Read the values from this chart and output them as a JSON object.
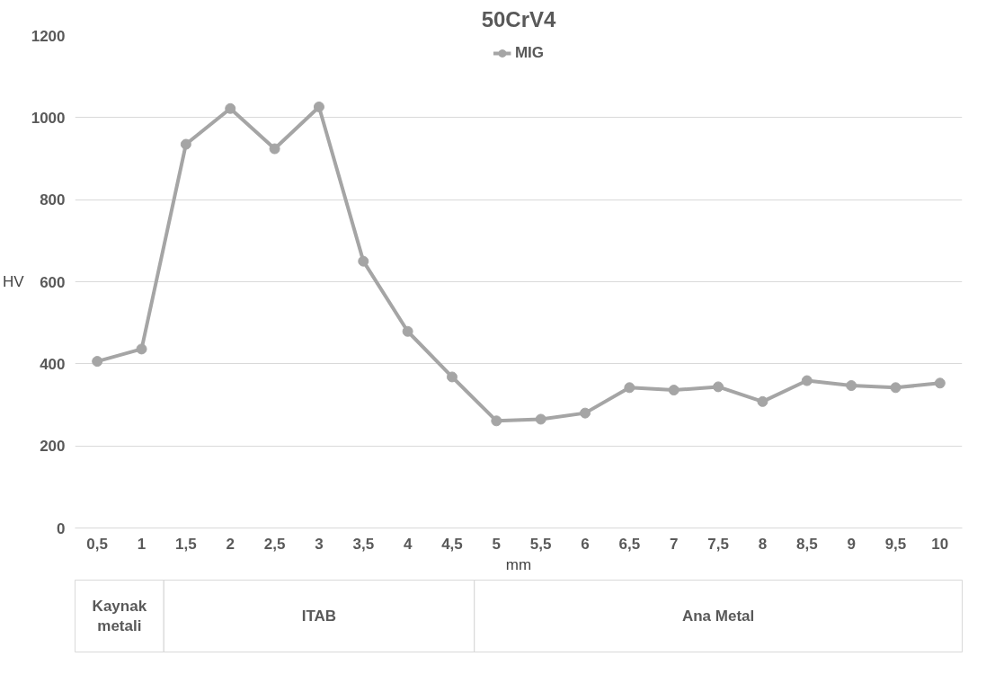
{
  "chart_data": {
    "type": "line",
    "title": "50CrV4",
    "xlabel": "mm",
    "ylabel": "HV",
    "categories": [
      "0,5",
      "1",
      "1,5",
      "2",
      "2,5",
      "3",
      "3,5",
      "4",
      "4,5",
      "5",
      "5,5",
      "6",
      "6,5",
      "7",
      "7,5",
      "8",
      "8,5",
      "9",
      "9,5",
      "10"
    ],
    "series": [
      {
        "name": "MIG",
        "color": "#a5a5a5",
        "values": [
          406,
          436,
          935,
          1022,
          924,
          1026,
          650,
          479,
          368,
          261,
          265,
          280,
          342,
          336,
          344,
          308,
          359,
          347,
          342,
          353
        ]
      }
    ],
    "ylim": [
      0,
      1200
    ],
    "yticks": [
      0,
      200,
      400,
      600,
      800,
      1000,
      1200
    ],
    "grid": "y",
    "legend": "top",
    "marker": "circle",
    "line_style": "solid",
    "annotations": [
      "Kaynak metali",
      "ITAB",
      "Ana Metal"
    ]
  }
}
